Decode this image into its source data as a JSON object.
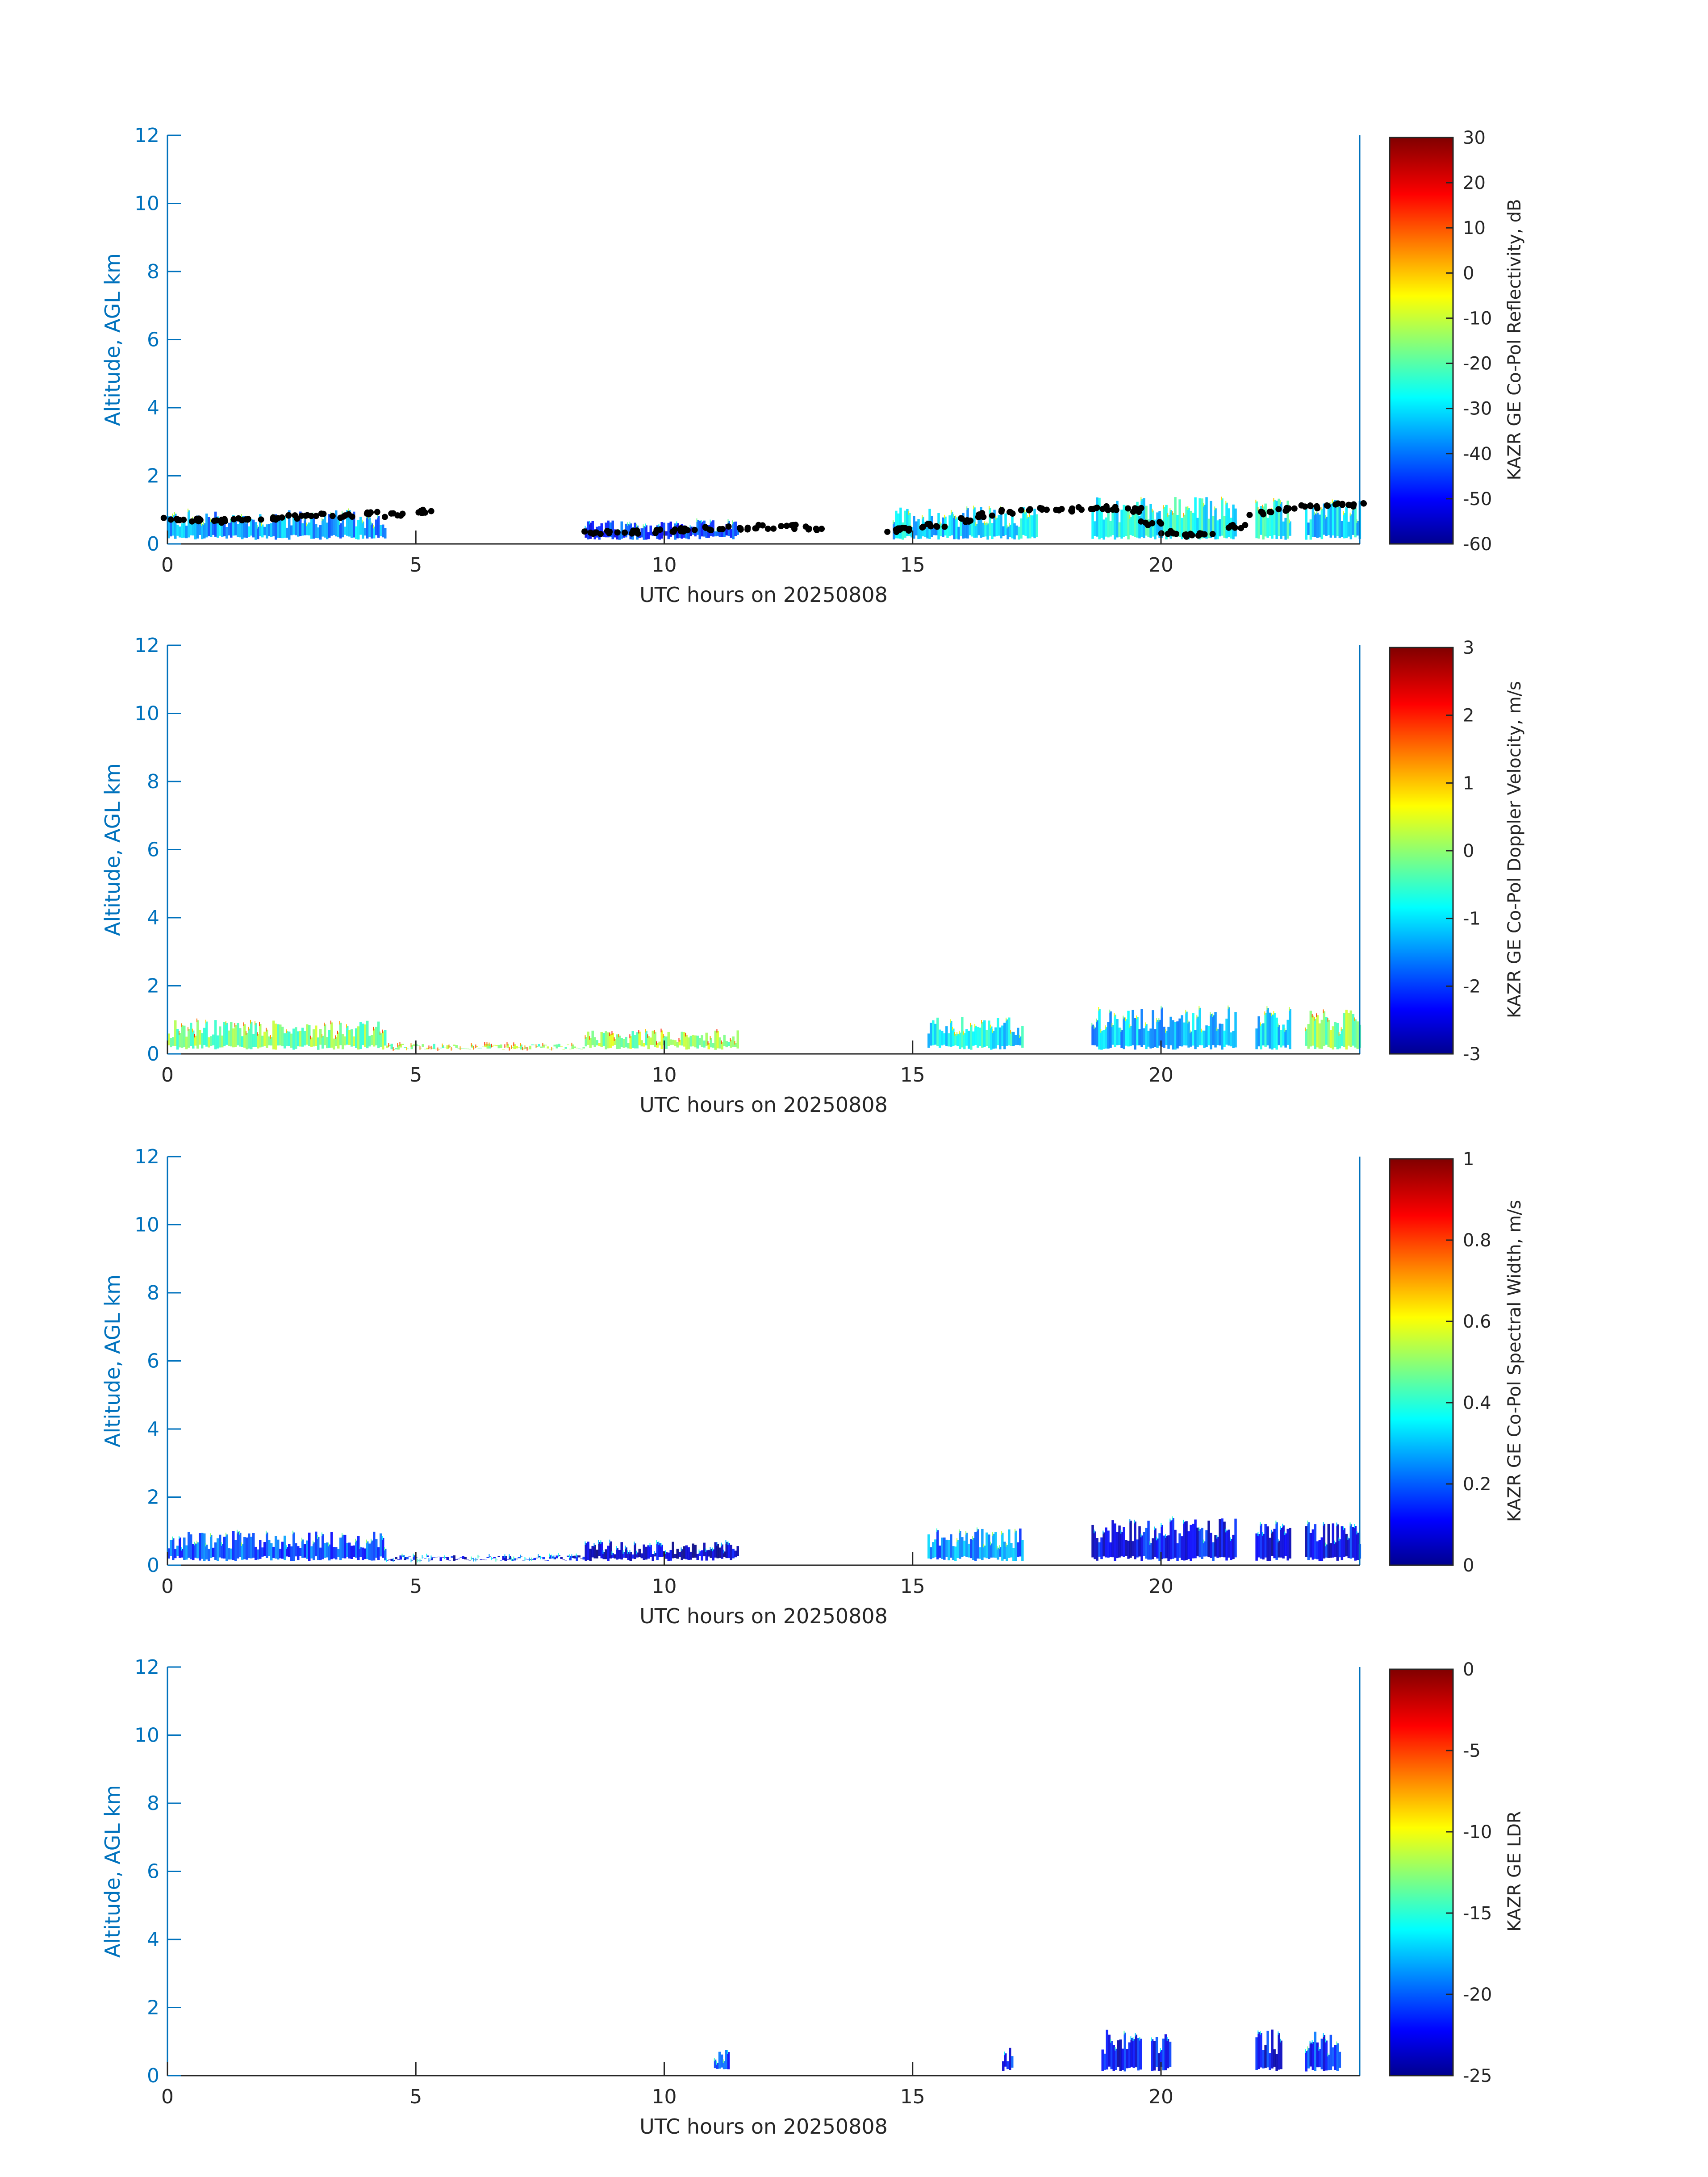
{
  "colors": {
    "axis_blue": "#0072BD",
    "axis_dark": "#262626",
    "jet": [
      "#00008F",
      "#0000FF",
      "#00FFFF",
      "#FFFF00",
      "#FF0000",
      "#800000"
    ],
    "cloud_dots": "#000000"
  },
  "chart_data": [
    {
      "type": "heatmap",
      "xlabel": "UTC hours on 20250808",
      "ylabel": "Altitude, AGL km",
      "xlim": [
        0,
        24
      ],
      "ylim": [
        0,
        12
      ],
      "xticks": [
        "0",
        "5",
        "10",
        "15",
        "20"
      ],
      "yticks": [
        "0",
        "2",
        "4",
        "6",
        "8",
        "10",
        "12"
      ],
      "colorbar_label": "KAZR GE Co-Pol Reflectivity, dB",
      "colorbar_range": [
        -60,
        30
      ],
      "colorbar_ticks": [
        "30",
        "20",
        "10",
        "0",
        "-10",
        "-20",
        "-30",
        "-40",
        "-50",
        "-60"
      ],
      "echo_segments": [
        {
          "x0": 0,
          "x1": 4.4,
          "top_km": 1.0,
          "value": -35
        },
        {
          "x0": 8.4,
          "x1": 11.5,
          "top_km": 0.7,
          "value": -45
        },
        {
          "x0": 14.6,
          "x1": 17.5,
          "top_km": 1.1,
          "value": -30
        },
        {
          "x0": 18.6,
          "x1": 21.5,
          "top_km": 1.4,
          "value": -25
        },
        {
          "x0": 21.9,
          "x1": 22.6,
          "top_km": 1.4,
          "value": -25
        },
        {
          "x0": 22.9,
          "x1": 24,
          "top_km": 1.3,
          "value": -30
        }
      ],
      "cloud_base_points": [
        {
          "x": 0.1,
          "y": 0.75
        },
        {
          "x": 0.5,
          "y": 0.72
        },
        {
          "x": 1.0,
          "y": 0.68
        },
        {
          "x": 1.5,
          "y": 0.7
        },
        {
          "x": 2.0,
          "y": 0.75
        },
        {
          "x": 2.5,
          "y": 0.8
        },
        {
          "x": 3.0,
          "y": 0.85
        },
        {
          "x": 3.5,
          "y": 0.82
        },
        {
          "x": 4.0,
          "y": 0.9
        },
        {
          "x": 4.6,
          "y": 0.85
        },
        {
          "x": 5.2,
          "y": 0.95
        },
        {
          "x": 8.5,
          "y": 0.35
        },
        {
          "x": 9.0,
          "y": 0.35
        },
        {
          "x": 9.5,
          "y": 0.35
        },
        {
          "x": 10.0,
          "y": 0.38
        },
        {
          "x": 10.5,
          "y": 0.42
        },
        {
          "x": 11.0,
          "y": 0.45
        },
        {
          "x": 11.5,
          "y": 0.48
        },
        {
          "x": 12.0,
          "y": 0.5
        },
        {
          "x": 12.5,
          "y": 0.5
        },
        {
          "x": 13.0,
          "y": 0.45
        },
        {
          "x": 14.6,
          "y": 0.4
        },
        {
          "x": 15.0,
          "y": 0.45
        },
        {
          "x": 15.5,
          "y": 0.55
        },
        {
          "x": 16.0,
          "y": 0.7
        },
        {
          "x": 16.5,
          "y": 0.85
        },
        {
          "x": 17.0,
          "y": 0.95
        },
        {
          "x": 17.5,
          "y": 1.0
        },
        {
          "x": 18.0,
          "y": 1.0
        },
        {
          "x": 18.5,
          "y": 1.05
        },
        {
          "x": 19.0,
          "y": 1.05
        },
        {
          "x": 19.5,
          "y": 1.0
        },
        {
          "x": 19.8,
          "y": 0.6
        },
        {
          "x": 20.2,
          "y": 0.35
        },
        {
          "x": 20.6,
          "y": 0.25
        },
        {
          "x": 21.0,
          "y": 0.3
        },
        {
          "x": 21.5,
          "y": 0.5
        },
        {
          "x": 22.0,
          "y": 0.9
        },
        {
          "x": 22.5,
          "y": 1.0
        },
        {
          "x": 23.0,
          "y": 1.1
        },
        {
          "x": 23.5,
          "y": 1.15
        },
        {
          "x": 23.9,
          "y": 1.15
        }
      ]
    },
    {
      "type": "heatmap",
      "xlabel": "UTC hours on 20250808",
      "ylabel": "Altitude, AGL km",
      "xlim": [
        0,
        24
      ],
      "ylim": [
        0,
        12
      ],
      "xticks": [
        "0",
        "5",
        "10",
        "15",
        "20"
      ],
      "yticks": [
        "0",
        "2",
        "4",
        "6",
        "8",
        "10",
        "12"
      ],
      "colorbar_label": "KAZR GE Co-Pol Doppler Velocity, m/s",
      "colorbar_range": [
        -3,
        3
      ],
      "colorbar_ticks": [
        "3",
        "2",
        "1",
        "0",
        "-1",
        "-2",
        "-3"
      ],
      "echo_segments": [
        {
          "x0": 0,
          "x1": 4.4,
          "top_km": 1.0,
          "value": 0.0
        },
        {
          "x0": 4.4,
          "x1": 8.4,
          "top_km": 0.3,
          "value": 0.0
        },
        {
          "x0": 8.4,
          "x1": 11.5,
          "top_km": 0.7,
          "value": 0.1
        },
        {
          "x0": 15.3,
          "x1": 17.2,
          "top_km": 1.1,
          "value": -0.8
        },
        {
          "x0": 18.6,
          "x1": 21.5,
          "top_km": 1.4,
          "value": -1.2
        },
        {
          "x0": 21.9,
          "x1": 22.6,
          "top_km": 1.4,
          "value": -1.0
        },
        {
          "x0": 22.9,
          "x1": 24,
          "top_km": 1.3,
          "value": 0.0
        }
      ]
    },
    {
      "type": "heatmap",
      "xlabel": "UTC hours on 20250808",
      "ylabel": "Altitude, AGL km",
      "xlim": [
        0,
        24
      ],
      "ylim": [
        0,
        12
      ],
      "xticks": [
        "0",
        "5",
        "10",
        "15",
        "20"
      ],
      "yticks": [
        "0",
        "2",
        "4",
        "6",
        "8",
        "10",
        "12"
      ],
      "colorbar_label": "KAZR GE Co-Pol Spectral Width, m/s",
      "colorbar_range": [
        0,
        1
      ],
      "colorbar_ticks": [
        "1",
        "0.8",
        "0.6",
        "0.4",
        "0.2",
        "0"
      ],
      "echo_segments": [
        {
          "x0": 0,
          "x1": 4.4,
          "top_km": 1.0,
          "value": 0.2
        },
        {
          "x0": 4.4,
          "x1": 8.4,
          "top_km": 0.3,
          "value": 0.1
        },
        {
          "x0": 8.4,
          "x1": 11.5,
          "top_km": 0.7,
          "value": 0.08
        },
        {
          "x0": 15.3,
          "x1": 17.2,
          "top_km": 1.1,
          "value": 0.25
        },
        {
          "x0": 18.6,
          "x1": 21.5,
          "top_km": 1.4,
          "value": 0.12
        },
        {
          "x0": 21.9,
          "x1": 22.6,
          "top_km": 1.4,
          "value": 0.1
        },
        {
          "x0": 22.9,
          "x1": 24,
          "top_km": 1.3,
          "value": 0.12
        }
      ]
    },
    {
      "type": "heatmap",
      "xlabel": "UTC hours on 20250808",
      "ylabel": "Altitude, AGL km",
      "xlim": [
        0,
        24
      ],
      "ylim": [
        0,
        12
      ],
      "xticks": [
        "0",
        "5",
        "10",
        "15",
        "20"
      ],
      "yticks": [
        "0",
        "2",
        "4",
        "6",
        "8",
        "10",
        "12"
      ],
      "colorbar_label": "KAZR GE LDR",
      "colorbar_range": [
        -25,
        0
      ],
      "colorbar_ticks": [
        "0",
        "-5",
        "-10",
        "-15",
        "-20",
        "-25"
      ],
      "echo_segments": [
        {
          "x0": 11.0,
          "x1": 11.3,
          "top_km": 0.8,
          "value": -20
        },
        {
          "x0": 16.8,
          "x1": 17.0,
          "top_km": 0.9,
          "value": -21
        },
        {
          "x0": 18.8,
          "x1": 19.6,
          "top_km": 1.4,
          "value": -22
        },
        {
          "x0": 19.8,
          "x1": 20.2,
          "top_km": 1.4,
          "value": -22
        },
        {
          "x0": 21.9,
          "x1": 22.4,
          "top_km": 1.4,
          "value": -22
        },
        {
          "x0": 22.9,
          "x1": 23.6,
          "top_km": 1.3,
          "value": -21
        }
      ]
    }
  ]
}
